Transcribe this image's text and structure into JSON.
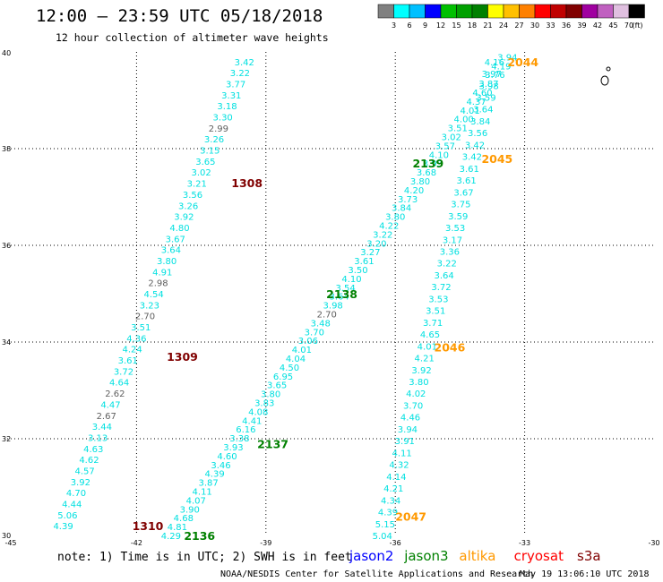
{
  "title": "12:00 – 23:59 UTC 05/18/2018",
  "subtitle": "12 hour collection of altimeter wave heights",
  "note": "note:  1) Time is in UTC;  2) SWH is in feet",
  "credit": "NOAA/NESDIS Center for Satellite Applications and Research",
  "timestamp": "May 19 13:06:10 UTC 2018",
  "colorbar": {
    "unit_label": "(ft)",
    "colors": [
      "#808080",
      "#00ffff",
      "#00c0ff",
      "#0000ff",
      "#00c000",
      "#00a000",
      "#008000",
      "#ffff00",
      "#ffc000",
      "#ff8000",
      "#ff0000",
      "#c00000",
      "#800000",
      "#a000a0",
      "#c060c0",
      "#e0c0e0",
      "#000000"
    ],
    "labels": [
      "3",
      "6",
      "9",
      "12",
      "15",
      "18",
      "21",
      "24",
      "27",
      "30",
      "33",
      "36",
      "39",
      "42",
      "45",
      "70"
    ]
  },
  "satellites": [
    {
      "name": "jason2",
      "color": "#0000ff"
    },
    {
      "name": "jason3",
      "color": "#008000"
    },
    {
      "name": "altika",
      "color": "#ff9900"
    },
    {
      "name": "cryosat",
      "color": "#ff0000"
    },
    {
      "name": "s3a",
      "color": "#800000"
    }
  ],
  "chart_data": {
    "type": "scatter",
    "title": "12:00 – 23:59 UTC 05/18/2018",
    "subtitle": "12 hour collection of altimeter wave heights",
    "xlim": [
      -45,
      -30
    ],
    "ylim": [
      30,
      40
    ],
    "x_ticks": [
      "-45",
      "-42",
      "-39",
      "-36",
      "-33",
      "-30"
    ],
    "y_ticks": [
      "30",
      "32",
      "34",
      "36",
      "38",
      "40"
    ],
    "grid": true,
    "unit": "ft",
    "tracks": [
      {
        "satellite": "s3a",
        "color": "#00e0e0",
        "start": [
          -43.7,
          30.2
        ],
        "end": [
          -39.5,
          39.8
        ],
        "values": [
          "4.39",
          "5.06",
          "4.44",
          "4.70",
          "3.92",
          "4.57",
          "4.62",
          "4.63",
          "3.13",
          "3.44",
          "2.67",
          "4.47",
          "2.62",
          "4.64",
          "3.72",
          "3.61",
          "4.24",
          "4.36",
          "3.51",
          "2.70",
          "3.23",
          "4.54",
          "2.98",
          "4.91",
          "3.80",
          "3.64",
          "3.67",
          "4.80",
          "3.92",
          "3.26",
          "3.56",
          "3.21",
          "3.02",
          "3.65",
          "3.15",
          "3.26",
          "2.99",
          "3.30",
          "3.18",
          "3.31",
          "3.77",
          "3.22",
          "3.42"
        ],
        "pass_labels": [
          {
            "text": "1310",
            "lon": -42.1,
            "lat": 30.2,
            "color": "#800000"
          },
          {
            "text": "1309",
            "lon": -41.3,
            "lat": 33.7,
            "color": "#800000"
          },
          {
            "text": "1308",
            "lon": -39.8,
            "lat": 37.3,
            "color": "#800000"
          }
        ]
      },
      {
        "satellite": "jason3",
        "color": "#00e0e0",
        "start": [
          -41.2,
          30.0
        ],
        "end": [
          -33.4,
          39.9
        ],
        "values": [
          "4.29",
          "4.81",
          "4.68",
          "3.90",
          "4.07",
          "4.11",
          "3.87",
          "4.39",
          "3.46",
          "4.60",
          "3.93",
          "3.38",
          "6.16",
          "4.41",
          "4.08",
          "3.83",
          "3.80",
          "3.65",
          "6.95",
          "4.50",
          "4.04",
          "4.01",
          "3.06",
          "3.70",
          "3.48",
          "2.70",
          "3.98",
          "3.64",
          "3.54",
          "4.10",
          "3.50",
          "3.61",
          "3.27",
          "3.20",
          "3.22",
          "4.22",
          "3.80",
          "3.84",
          "3.73",
          "4.20",
          "3.80",
          "3.68",
          "3.93",
          "4.10",
          "3.57",
          "3.02",
          "3.51",
          "4.00",
          "4.01",
          "4.37",
          "4.60",
          "3.87",
          "3.76",
          "4.19",
          "3.94"
        ],
        "pass_labels": [
          {
            "text": "2136",
            "lon": -40.9,
            "lat": 30.0,
            "color": "#008000"
          },
          {
            "text": "2137",
            "lon": -39.2,
            "lat": 31.9,
            "color": "#008000"
          },
          {
            "text": "2138",
            "lon": -37.6,
            "lat": 35.0,
            "color": "#008000"
          },
          {
            "text": "2139",
            "lon": -35.6,
            "lat": 37.7,
            "color": "#008000"
          }
        ]
      },
      {
        "satellite": "altika",
        "color": "#00e0e0",
        "start": [
          -36.3,
          30.0
        ],
        "end": [
          -33.7,
          39.8
        ],
        "values": [
          "5.04",
          "5.15",
          "4.39",
          "4.34",
          "4.21",
          "4.14",
          "4.32",
          "4.11",
          "3.91",
          "3.94",
          "4.46",
          "3.70",
          "4.02",
          "3.80",
          "3.92",
          "4.21",
          "4.01",
          "4.65",
          "3.71",
          "3.51",
          "3.53",
          "3.72",
          "3.64",
          "3.22",
          "3.36",
          "3.17",
          "3.53",
          "3.59",
          "3.75",
          "3.67",
          "3.61",
          "3.61",
          "3.42",
          "3.42",
          "3.56",
          "3.84",
          "3.64",
          "3.59",
          "3.98",
          "3.97",
          "4.16"
        ],
        "pass_labels": [
          {
            "text": "2047",
            "lon": -36.0,
            "lat": 30.4,
            "color": "#ff9900"
          },
          {
            "text": "2046",
            "lon": -35.1,
            "lat": 33.9,
            "color": "#ff9900"
          },
          {
            "text": "2045",
            "lon": -34.0,
            "lat": 37.8,
            "color": "#ff9900"
          },
          {
            "text": "2044",
            "lon": -33.4,
            "lat": 39.8,
            "color": "#ff9900"
          }
        ]
      }
    ],
    "low_value_color": "#606060",
    "low_value_threshold": 3.0
  }
}
